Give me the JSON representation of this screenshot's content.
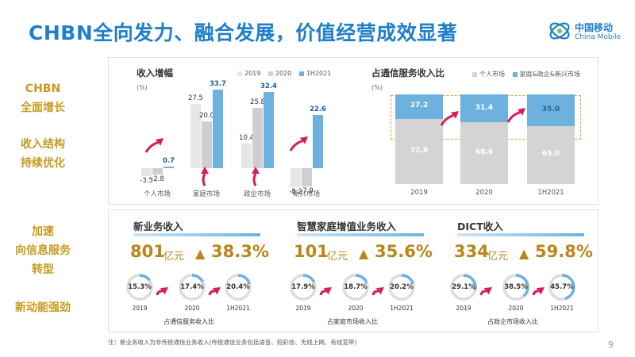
{
  "title": "CHBN全向发力、融合发展，价值经营成效显著",
  "logo": {
    "cn": "中国移动",
    "en": "China Mobile"
  },
  "side_labels": [
    "CHBN\n全面增长",
    "收入结构\n持续优化",
    "加速\n向信息服务\n转型",
    "新动能强劲"
  ],
  "colors": {
    "accent_blue": "#1f7fc9",
    "gold": "#c79a1e",
    "bar_light": "#e6e6e6",
    "bar_mid": "#cfcfcf",
    "bar_blue": "#6db2de",
    "arrow": "#d81b60"
  },
  "growth_chart": {
    "title": "收入增幅",
    "unit": "(%)",
    "legend": [
      "2019",
      "2020",
      "1H2021"
    ]
  },
  "share_chart": {
    "title": "占通信服务收入比",
    "unit": "(%)",
    "legend": [
      "个人市场",
      "家庭&政企&新兴市场"
    ]
  },
  "chart_data": [
    {
      "type": "bar",
      "title": "收入增幅",
      "ylabel": "(%)",
      "categories": [
        "个人市场",
        "家庭市场",
        "政企市场",
        "新兴市场"
      ],
      "series": [
        {
          "name": "2019",
          "values": [
            -3.5,
            27.5,
            10.4,
            -8.2
          ]
        },
        {
          "name": "2020",
          "values": [
            -2.8,
            20.0,
            25.8,
            -7.9
          ]
        },
        {
          "name": "1H2021",
          "values": [
            0.7,
            33.7,
            32.4,
            22.6
          ]
        }
      ],
      "labels": [
        [
          "-3.5",
          "-2.8",
          "0.7"
        ],
        [
          "27.5",
          "20.0",
          "33.7"
        ],
        [
          "10.4",
          "25.8",
          "32.4"
        ],
        [
          "-8.2",
          "-7.9",
          "22.6"
        ]
      ],
      "ylim": [
        -10,
        35
      ],
      "legend": "top-right"
    },
    {
      "type": "bar",
      "title": "占通信服务收入比",
      "ylabel": "(%)",
      "categories": [
        "2019",
        "2020",
        "1H2021"
      ],
      "series": [
        {
          "name": "个人市场",
          "values": [
            72.8,
            68.6,
            65.0
          ]
        },
        {
          "name": "家庭&政企&新兴市场",
          "values": [
            27.2,
            31.4,
            35.0
          ]
        }
      ],
      "labels": [
        [
          "72.8",
          "27.2"
        ],
        [
          "68.6",
          "31.4"
        ],
        [
          "65.0",
          "35.0"
        ]
      ],
      "ylim": [
        0,
        100
      ],
      "legend": "top-right"
    }
  ],
  "cards": [
    {
      "title": "新业务收入",
      "amount": "801",
      "unit": "亿元",
      "arrow": "▲",
      "growth": "38.3%",
      "donuts": [
        {
          "label": "15.3%",
          "year": "2019",
          "value": 15.3
        },
        {
          "label": "17.4%",
          "year": "2020",
          "value": 17.4
        },
        {
          "label": "20.4%",
          "year": "1H2021",
          "value": 20.4
        }
      ],
      "caption": "占通信服务收入比"
    },
    {
      "title": "智慧家庭增值业务收入",
      "amount": "101",
      "unit": "亿元",
      "arrow": "▲",
      "growth": "35.6%",
      "donuts": [
        {
          "label": "17.9%",
          "year": "2019",
          "value": 17.9
        },
        {
          "label": "18.7%",
          "year": "2020",
          "value": 18.7
        },
        {
          "label": "20.2%",
          "year": "1H2021",
          "value": 20.2
        }
      ],
      "caption": "占家庭市场收入比"
    },
    {
      "title": "DICT收入",
      "amount": "334",
      "unit": "亿元",
      "arrow": "▲",
      "growth": "59.8%",
      "donuts": [
        {
          "label": "29.1%",
          "year": "2019",
          "value": 29.1
        },
        {
          "label": "38.5%",
          "year": "2020",
          "value": 38.5
        },
        {
          "label": "45.7%",
          "year": "1H2021",
          "value": 45.7
        }
      ],
      "caption": "占政企市场收入比"
    }
  ],
  "footnote": "注：新业务收入为非传统通信业务收入(传统通信业务包括语音、短彩信、无线上网、有线宽带)",
  "page_number": "9"
}
